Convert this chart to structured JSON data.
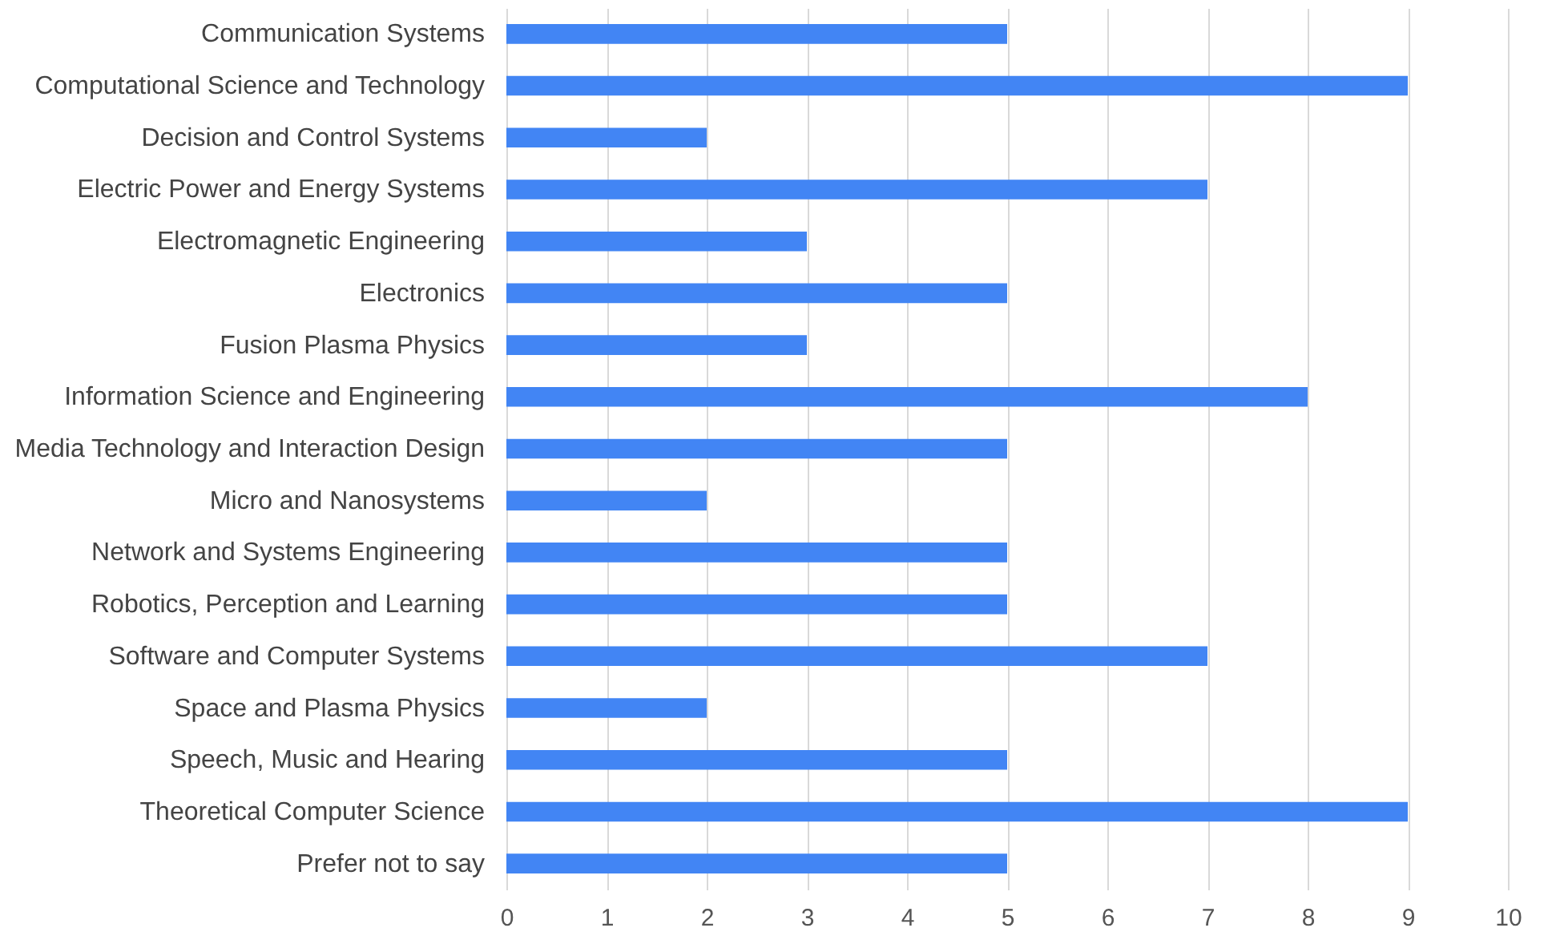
{
  "chart_data": {
    "type": "bar",
    "orientation": "horizontal",
    "categories": [
      "Communication Systems",
      "Computational Science and Technology",
      "Decision and Control Systems",
      "Electric Power and Energy Systems",
      "Electromagnetic Engineering",
      "Electronics",
      "Fusion Plasma Physics",
      "Information Science and Engineering",
      "Media Technology and Interaction Design",
      "Micro and Nanosystems",
      "Network and Systems Engineering",
      "Robotics, Perception and Learning",
      "Software and Computer Systems",
      "Space and Plasma Physics",
      "Speech, Music and Hearing",
      "Theoretical Computer Science",
      "Prefer not to say"
    ],
    "values": [
      5,
      9,
      2,
      7,
      3,
      5,
      3,
      8,
      5,
      2,
      5,
      5,
      7,
      2,
      5,
      9,
      5
    ],
    "color": "#4285f4",
    "xlim": [
      0,
      10
    ],
    "xticks": [
      0,
      1,
      2,
      3,
      4,
      5,
      6,
      7,
      8,
      9,
      10
    ],
    "grid": "x"
  }
}
